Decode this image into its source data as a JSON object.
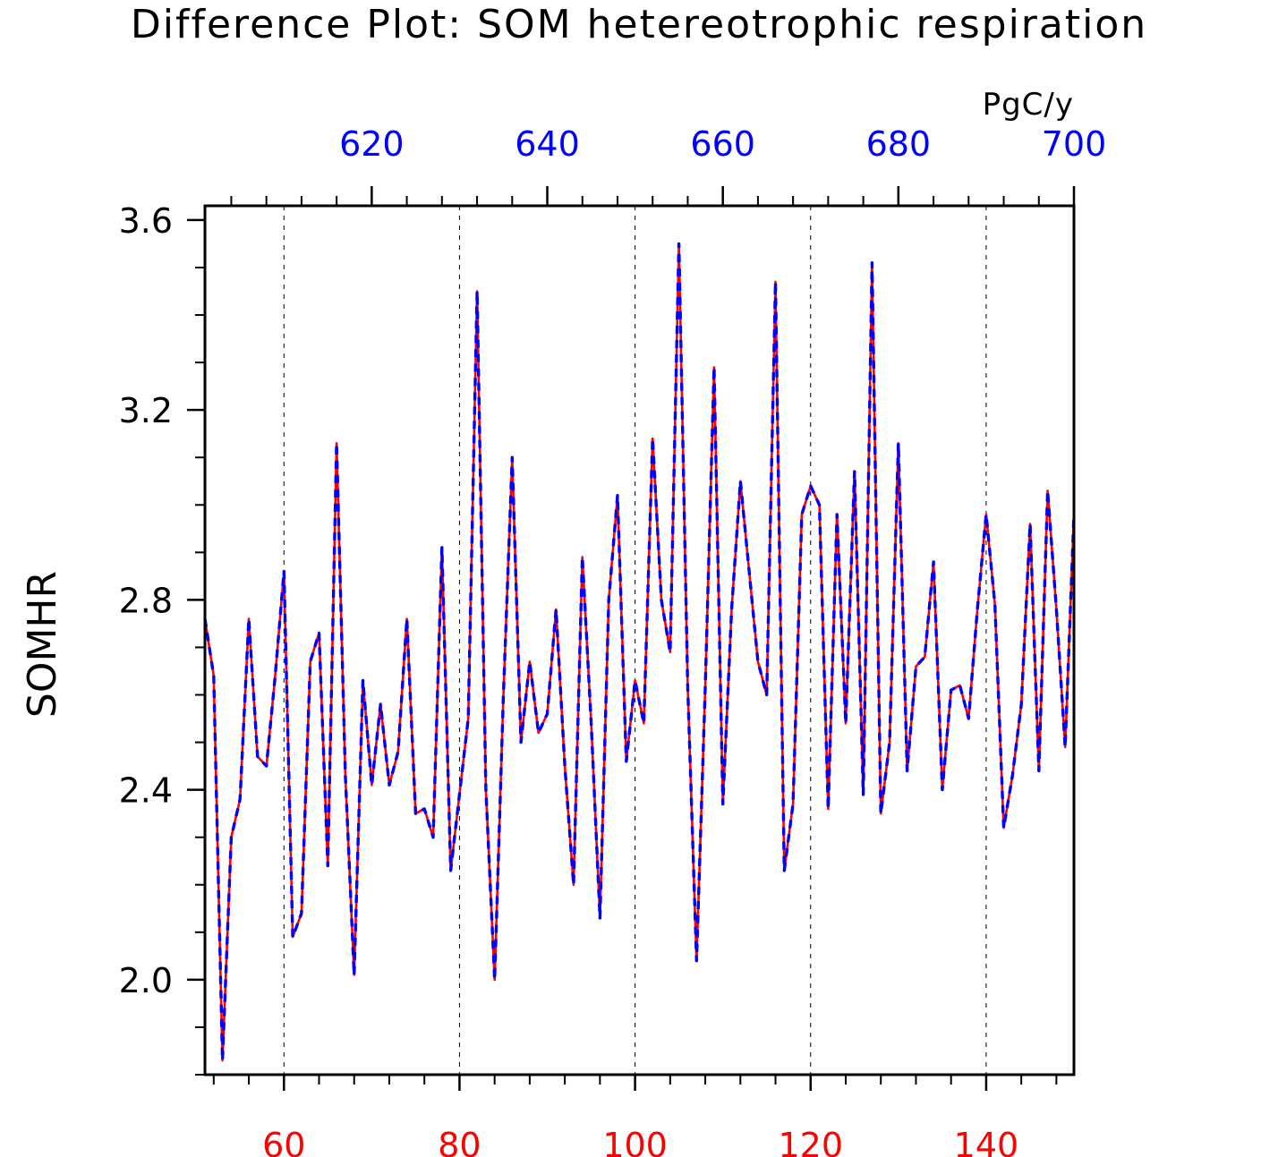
{
  "chart_data": {
    "type": "line",
    "title": "Difference Plot: SOM hetereotrophic respiration",
    "ylabel": "SOMHR",
    "units": "PgC/y",
    "colors": {
      "bottom_axis": "#ff0000",
      "top_axis": "#0000ff",
      "axes": "#000000"
    },
    "bottom_axis": {
      "range": [
        51,
        150
      ],
      "ticks": [
        60,
        80,
        100,
        120,
        140
      ],
      "tick_labels": [
        "60",
        "80",
        "100",
        "120",
        "140"
      ],
      "color": "#ff0000"
    },
    "top_axis": {
      "range": [
        601,
        700
      ],
      "ticks": [
        620,
        640,
        660,
        680,
        700
      ],
      "tick_labels": [
        "620",
        "640",
        "660",
        "680",
        "700"
      ],
      "color": "#0000ff"
    },
    "ylim": [
      1.8,
      3.63
    ],
    "y_ticks": [
      2.0,
      2.4,
      2.8,
      3.2,
      3.6
    ],
    "y_tick_labels": [
      "2.0",
      "2.4",
      "2.8",
      "3.2",
      "3.6"
    ],
    "grid": "vertical dashed lines at major x ticks",
    "x": [
      51,
      52,
      53,
      54,
      55,
      56,
      57,
      58,
      59,
      60,
      61,
      62,
      63,
      64,
      65,
      66,
      67,
      68,
      69,
      70,
      71,
      72,
      73,
      74,
      75,
      76,
      77,
      78,
      79,
      80,
      81,
      82,
      83,
      84,
      85,
      86,
      87,
      88,
      89,
      90,
      91,
      92,
      93,
      94,
      95,
      96,
      97,
      98,
      99,
      100,
      101,
      102,
      103,
      104,
      105,
      106,
      107,
      108,
      109,
      110,
      111,
      112,
      113,
      114,
      115,
      116,
      117,
      118,
      119,
      120,
      121,
      122,
      123,
      124,
      125,
      126,
      127,
      128,
      129,
      130,
      131,
      132,
      133,
      134,
      135,
      136,
      137,
      138,
      139,
      140,
      141,
      142,
      143,
      144,
      145,
      146,
      147,
      148,
      149,
      150
    ],
    "series": [
      {
        "color": "#ff0000",
        "style": "solid",
        "values": [
          2.76,
          2.64,
          1.83,
          2.3,
          2.38,
          2.76,
          2.47,
          2.45,
          2.64,
          2.86,
          2.09,
          2.14,
          2.67,
          2.73,
          2.24,
          3.13,
          2.43,
          2.01,
          2.63,
          2.41,
          2.58,
          2.41,
          2.48,
          2.76,
          2.35,
          2.36,
          2.3,
          2.91,
          2.23,
          2.39,
          2.55,
          3.45,
          2.4,
          2.0,
          2.6,
          3.1,
          2.5,
          2.67,
          2.52,
          2.56,
          2.78,
          2.45,
          2.2,
          2.89,
          2.54,
          2.13,
          2.8,
          3.02,
          2.46,
          2.63,
          2.54,
          3.14,
          2.8,
          2.69,
          3.55,
          2.62,
          2.04,
          2.62,
          3.29,
          2.37,
          2.78,
          3.05,
          2.86,
          2.67,
          2.6,
          3.47,
          2.23,
          2.37,
          2.98,
          3.04,
          3.0,
          2.36,
          2.98,
          2.54,
          3.07,
          2.39,
          3.51,
          2.35,
          2.5,
          3.13,
          2.44,
          2.66,
          2.68,
          2.88,
          2.4,
          2.61,
          2.62,
          2.55,
          2.78,
          2.98,
          2.79,
          2.32,
          2.43,
          2.58,
          2.96,
          2.44,
          3.03,
          2.78,
          2.49,
          2.98
        ]
      },
      {
        "color": "#0000ff",
        "style": "dashed",
        "values": [
          2.76,
          2.64,
          1.83,
          2.3,
          2.38,
          2.76,
          2.47,
          2.45,
          2.64,
          2.86,
          2.09,
          2.14,
          2.67,
          2.73,
          2.24,
          3.13,
          2.43,
          2.01,
          2.63,
          2.41,
          2.58,
          2.41,
          2.48,
          2.76,
          2.35,
          2.36,
          2.3,
          2.91,
          2.23,
          2.39,
          2.55,
          3.45,
          2.4,
          2.0,
          2.6,
          3.1,
          2.5,
          2.67,
          2.52,
          2.56,
          2.78,
          2.45,
          2.2,
          2.89,
          2.54,
          2.13,
          2.8,
          3.02,
          2.46,
          2.63,
          2.54,
          3.14,
          2.8,
          2.69,
          3.55,
          2.62,
          2.04,
          2.62,
          3.29,
          2.37,
          2.78,
          3.05,
          2.86,
          2.67,
          2.6,
          3.47,
          2.23,
          2.37,
          2.98,
          3.04,
          3.0,
          2.36,
          2.98,
          2.54,
          3.07,
          2.39,
          3.51,
          2.35,
          2.5,
          3.13,
          2.44,
          2.66,
          2.68,
          2.88,
          2.4,
          2.61,
          2.62,
          2.55,
          2.78,
          2.98,
          2.79,
          2.32,
          2.43,
          2.58,
          2.96,
          2.44,
          3.03,
          2.78,
          2.49,
          2.98
        ]
      }
    ]
  }
}
